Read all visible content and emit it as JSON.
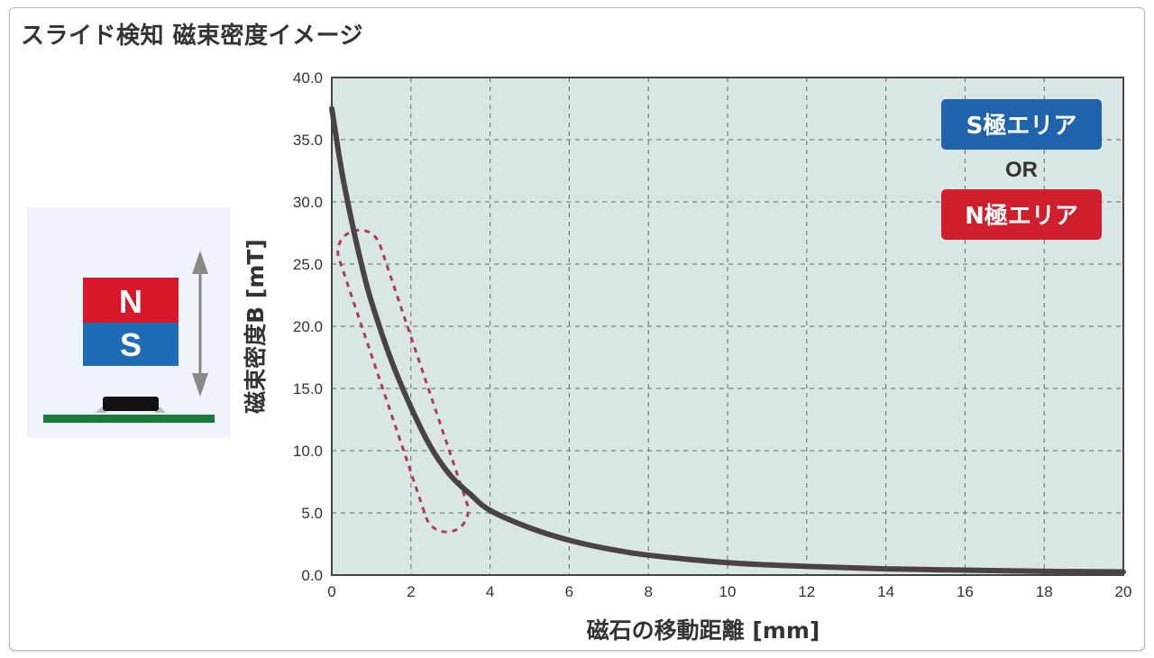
{
  "title": "スライド検知 磁束密度イメージ",
  "illustration": {
    "magnet_top_label": "N",
    "magnet_bottom_label": "S",
    "colors": {
      "north": "#d7182a",
      "south": "#1f6bb5",
      "board": "#1a7a3a",
      "chip": "#111111",
      "arrow": "#888888",
      "panel": "#eef4fa"
    }
  },
  "legend": {
    "s_area": "S極エリア",
    "or": "OR",
    "n_area": "N極エリア",
    "colors": {
      "s": "#1f63ad",
      "n": "#d01f2c"
    }
  },
  "chart_data": {
    "type": "line",
    "xlabel": "磁石の移動距離 [mm]",
    "ylabel": "磁束密度B [mT]",
    "xlim": [
      0,
      20
    ],
    "ylim": [
      0,
      40
    ],
    "x_ticks": [
      "0",
      "2",
      "4",
      "6",
      "8",
      "10",
      "12",
      "14",
      "16",
      "18",
      "20"
    ],
    "y_ticks": [
      "0.0",
      "5.0",
      "10.0",
      "15.0",
      "20.0",
      "25.0",
      "30.0",
      "35.0",
      "40.0"
    ],
    "grid": true,
    "series": [
      {
        "x": [
          0,
          0.25,
          0.5,
          0.75,
          1,
          1.5,
          2,
          2.5,
          3,
          3.5,
          4,
          5,
          6,
          7,
          8,
          10,
          12,
          14,
          16,
          18,
          20
        ],
        "y": [
          37.5,
          32.5,
          28.5,
          25.0,
          22.0,
          17.3,
          13.5,
          10.3,
          8.0,
          6.5,
          5.2,
          3.8,
          2.8,
          2.1,
          1.6,
          1.0,
          0.7,
          0.5,
          0.4,
          0.3,
          0.25
        ],
        "color": "#4a4248"
      }
    ],
    "highlight_region": {
      "x_from": 0.7,
      "x_to": 2.9,
      "y_from": 26.0,
      "y_to": 5.2,
      "color": "#b03a5a"
    },
    "plot_background": "#d8e7e5"
  }
}
